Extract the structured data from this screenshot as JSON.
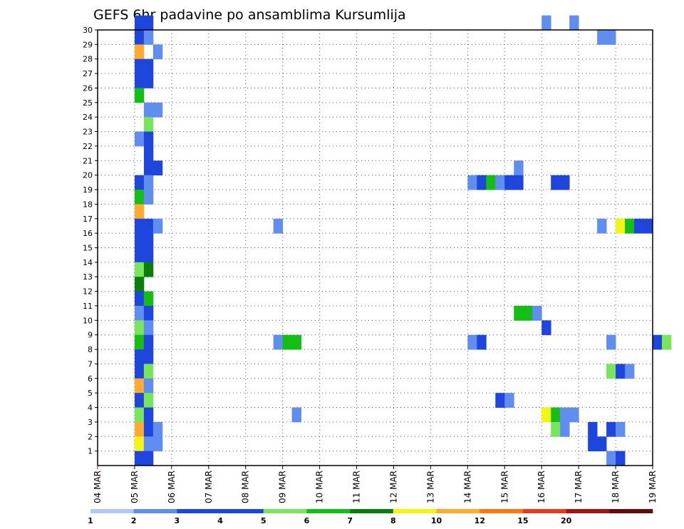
{
  "chart_data": {
    "type": "heatmap",
    "title": "GEFS 6hr padavine po ansamblima Kursumlija",
    "xlabel": "",
    "ylabel": "",
    "x_ticks": [
      "04 MAR",
      "05 MAR",
      "06 MAR",
      "07 MAR",
      "08 MAR",
      "09 MAR",
      "10 MAR",
      "11 MAR",
      "12 MAR",
      "13 MAR",
      "14 MAR",
      "15 MAR",
      "16 MAR",
      "17 MAR",
      "18 MAR",
      "19 MAR"
    ],
    "xlim_days": [
      0,
      15
    ],
    "ylim_members": [
      0,
      30
    ],
    "y_ticks": [
      1,
      2,
      3,
      4,
      5,
      6,
      7,
      8,
      9,
      10,
      11,
      12,
      13,
      14,
      15,
      16,
      17,
      18,
      19,
      20,
      21,
      22,
      23,
      24,
      25,
      26,
      27,
      28,
      29,
      30
    ],
    "step_hours": 6,
    "colorbar": {
      "labels": [
        "1",
        "2",
        "3",
        "4",
        "5",
        "6",
        "7",
        "8",
        "10",
        "12",
        "15",
        "20"
      ],
      "colors": [
        "#b4c8f5",
        "#5f8ef0",
        "#1e46dc",
        "#1e46dc",
        "#78e65a",
        "#14be14",
        "#0a7d0a",
        "#f5f514",
        "#ffaa32",
        "#ff7814",
        "#e63c1e",
        "#a01414",
        "#640a0a"
      ]
    },
    "cells": [
      [
        4,
        30,
        2
      ],
      [
        5,
        30,
        2
      ],
      [
        48,
        30,
        1
      ],
      [
        51,
        30,
        1
      ],
      [
        4,
        29,
        2
      ],
      [
        5,
        29,
        1
      ],
      [
        54,
        29,
        1
      ],
      [
        55,
        29,
        1
      ],
      [
        4,
        28,
        8
      ],
      [
        6,
        28,
        1
      ],
      [
        4,
        27,
        2
      ],
      [
        5,
        27,
        2
      ],
      [
        4,
        26,
        3
      ],
      [
        5,
        26,
        2
      ],
      [
        4,
        25,
        5
      ],
      [
        5,
        24,
        1
      ],
      [
        6,
        24,
        1
      ],
      [
        5,
        23,
        4
      ],
      [
        4,
        22,
        1
      ],
      [
        5,
        22,
        3
      ],
      [
        5,
        21,
        2
      ],
      [
        5,
        20,
        2
      ],
      [
        6,
        20,
        3
      ],
      [
        45,
        20,
        1
      ],
      [
        4,
        19,
        2
      ],
      [
        5,
        19,
        1
      ],
      [
        40,
        19,
        1
      ],
      [
        41,
        19,
        3
      ],
      [
        42,
        19,
        5
      ],
      [
        43,
        19,
        1
      ],
      [
        44,
        19,
        2
      ],
      [
        45,
        19,
        3
      ],
      [
        49,
        19,
        2
      ],
      [
        50,
        19,
        3
      ],
      [
        4,
        18,
        5
      ],
      [
        5,
        18,
        1
      ],
      [
        4,
        17,
        8
      ],
      [
        4,
        16,
        2
      ],
      [
        5,
        16,
        2
      ],
      [
        6,
        16,
        1
      ],
      [
        19,
        16,
        1
      ],
      [
        54,
        16,
        1
      ],
      [
        56,
        16,
        7
      ],
      [
        57,
        16,
        5
      ],
      [
        58,
        16,
        2
      ],
      [
        59,
        16,
        2
      ],
      [
        4,
        15,
        2
      ],
      [
        5,
        15,
        3
      ],
      [
        4,
        14,
        2
      ],
      [
        5,
        14,
        3
      ],
      [
        4,
        13,
        4
      ],
      [
        5,
        13,
        6
      ],
      [
        4,
        12,
        6
      ],
      [
        4,
        11,
        3
      ],
      [
        5,
        11,
        5
      ],
      [
        4,
        10,
        1
      ],
      [
        5,
        10,
        3
      ],
      [
        45,
        10,
        5
      ],
      [
        46,
        10,
        5
      ],
      [
        47,
        10,
        1
      ],
      [
        4,
        9,
        4
      ],
      [
        5,
        9,
        1
      ],
      [
        48,
        9,
        3
      ],
      [
        4,
        8,
        5
      ],
      [
        5,
        8,
        2
      ],
      [
        19,
        8,
        1
      ],
      [
        20,
        8,
        5
      ],
      [
        21,
        8,
        5
      ],
      [
        40,
        8,
        1
      ],
      [
        41,
        8,
        2
      ],
      [
        55,
        8,
        1
      ],
      [
        60,
        8,
        2
      ],
      [
        61,
        8,
        4
      ],
      [
        4,
        7,
        3
      ],
      [
        5,
        7,
        3
      ],
      [
        4,
        6,
        3
      ],
      [
        5,
        6,
        4
      ],
      [
        55,
        6,
        4
      ],
      [
        56,
        6,
        2
      ],
      [
        57,
        6,
        1
      ],
      [
        4,
        5,
        8
      ],
      [
        5,
        5,
        1
      ],
      [
        4,
        4,
        3
      ],
      [
        5,
        4,
        4
      ],
      [
        43,
        4,
        2
      ],
      [
        44,
        4,
        1
      ],
      [
        4,
        3,
        4
      ],
      [
        5,
        3,
        2
      ],
      [
        21,
        3,
        1
      ],
      [
        48,
        3,
        7
      ],
      [
        49,
        3,
        5
      ],
      [
        50,
        3,
        1
      ],
      [
        51,
        3,
        1
      ],
      [
        4,
        2,
        8
      ],
      [
        5,
        2,
        3
      ],
      [
        6,
        2,
        1
      ],
      [
        49,
        2,
        4
      ],
      [
        50,
        2,
        1
      ],
      [
        53,
        2,
        2
      ],
      [
        55,
        2,
        2
      ],
      [
        56,
        2,
        1
      ],
      [
        4,
        1,
        7
      ],
      [
        5,
        1,
        1
      ],
      [
        6,
        1,
        1
      ],
      [
        53,
        1,
        2
      ],
      [
        54,
        1,
        3
      ],
      [
        4,
        0,
        3
      ],
      [
        5,
        0,
        2
      ],
      [
        55,
        0,
        1
      ],
      [
        56,
        0,
        3
      ]
    ]
  }
}
